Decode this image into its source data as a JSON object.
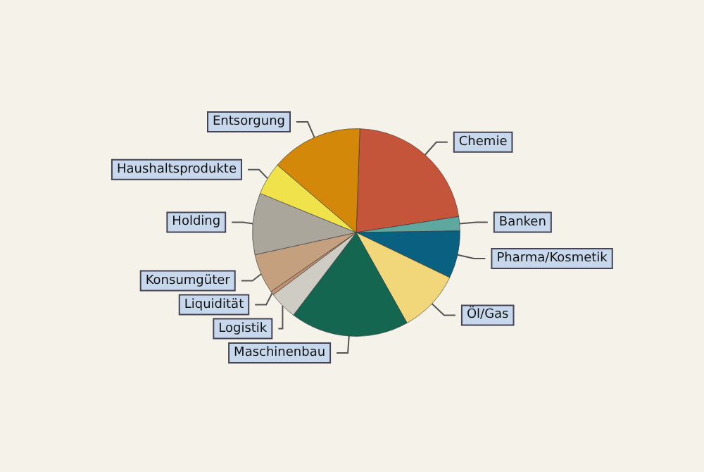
{
  "chart_data": {
    "type": "pie",
    "categories": [
      "Chemie",
      "Banken",
      "Pharma/Kosmetik",
      "Öl/Gas",
      "Maschinenbau",
      "Logistik",
      "Liquidität",
      "Konsumgüter",
      "Holding",
      "Haushaltsprodukte",
      "Entsorgung"
    ],
    "values": [
      22.0,
      2.2,
      7.4,
      9.7,
      18.5,
      4.4,
      0.6,
      6.2,
      9.6,
      5.1,
      14.3
    ],
    "colors": [
      "#c4553a",
      "#5fa8a0",
      "#0a6080",
      "#f2d67a",
      "#146650",
      "#cfccc4",
      "#c09070",
      "#c4a07e",
      "#aaa69c",
      "#f0e24a",
      "#d4880a"
    ],
    "legend": false
  }
}
